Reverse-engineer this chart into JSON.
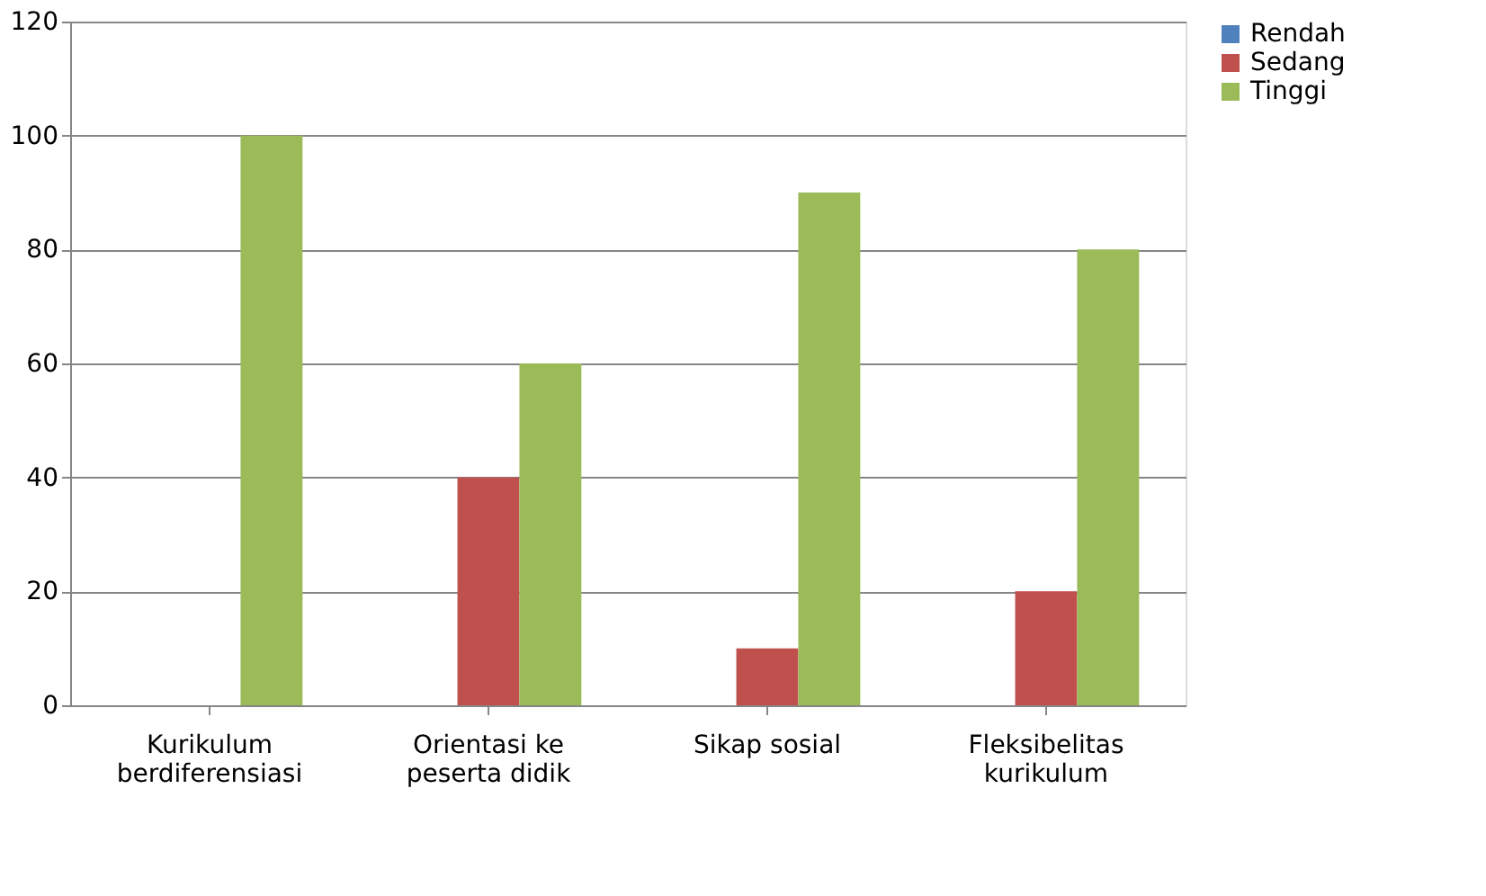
{
  "chart_data": {
    "type": "bar",
    "categories": [
      "Kurikulum berdiferensiasi",
      "Orientasi ke peserta didik",
      "Sikap sosial",
      "Fleksibelitas kurikulum"
    ],
    "series": [
      {
        "name": "Rendah",
        "color": "#4f81bd",
        "values": [
          0,
          0,
          0,
          0
        ]
      },
      {
        "name": "Sedang",
        "color": "#c0504d",
        "values": [
          0,
          40,
          10,
          20
        ]
      },
      {
        "name": "Tinggi",
        "color": "#9bbb59",
        "values": [
          100,
          60,
          90,
          80
        ]
      }
    ],
    "ylim": [
      0,
      120
    ],
    "yticks": [
      0,
      20,
      40,
      60,
      80,
      100,
      120
    ],
    "grid": "y",
    "legend": "right"
  }
}
